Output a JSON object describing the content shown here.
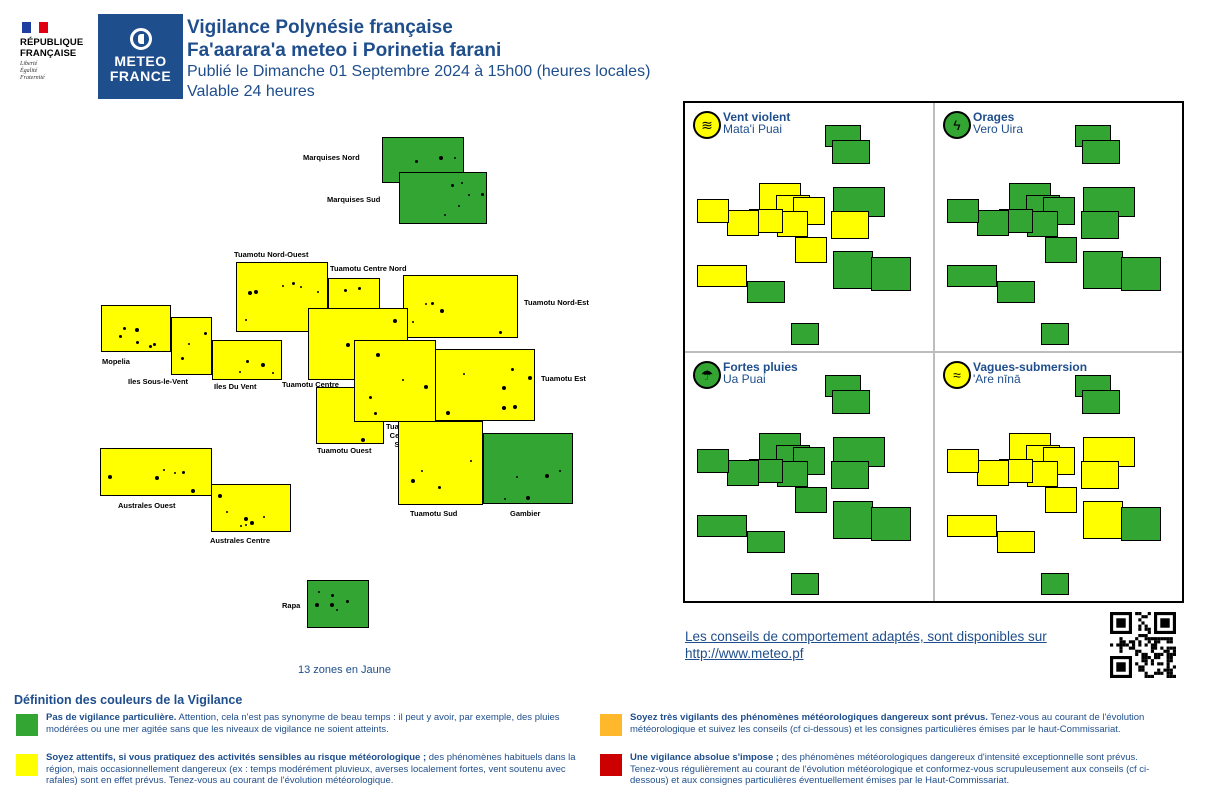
{
  "header": {
    "republic_lines": [
      "RÉPUBLIQUE",
      "FRANÇAISE"
    ],
    "republic_motto": [
      "Liberté",
      "Égalité",
      "Fraternité"
    ],
    "meteo_logo_lines": [
      "METEO",
      "FRANCE"
    ],
    "title_fr": "Vigilance Polynésie française",
    "title_tah": "Fa'aarara'a meteo i Porinetia farani",
    "published": "Publié le Dimanche 01 Septembre 2024 à 15h00 (heures locales)",
    "validity": "Valable 24 heures"
  },
  "colors": {
    "green": "#33a532",
    "yellow": "#ffff00",
    "orange": "#ffb82b",
    "red": "#cc0000",
    "brand_blue": "#1f4e8c"
  },
  "map": {
    "zones": [
      {
        "name": "Marquises Nord",
        "color": "green"
      },
      {
        "name": "Marquises Sud",
        "color": "green"
      },
      {
        "name": "Tuamotu Nord-Ouest",
        "color": "yellow"
      },
      {
        "name": "Tuamotu Centre Nord",
        "color": "yellow"
      },
      {
        "name": "Tuamotu Nord-Est",
        "color": "yellow"
      },
      {
        "name": "Mopelia",
        "color": "yellow"
      },
      {
        "name": "Iles Sous-le-Vent",
        "color": "yellow"
      },
      {
        "name": "Iles Du Vent",
        "color": "yellow"
      },
      {
        "name": "Tuamotu Centre",
        "color": "yellow"
      },
      {
        "name": "Tuamotu Est",
        "color": "yellow"
      },
      {
        "name": "Tuamotu Ouest",
        "color": "yellow"
      },
      {
        "name": "Tuamotu Centre Sud",
        "color": "yellow"
      },
      {
        "name": "Australes Ouest",
        "color": "yellow"
      },
      {
        "name": "Australes Centre",
        "color": "yellow"
      },
      {
        "name": "Tuamotu Sud",
        "color": "yellow"
      },
      {
        "name": "Gambier",
        "color": "green"
      },
      {
        "name": "Rapa",
        "color": "green"
      }
    ],
    "summary": "13 zones en Jaune"
  },
  "panels": [
    {
      "title": "Vent violent",
      "subtitle": "Mata'i Puai",
      "icon": "wind-icon"
    },
    {
      "title": "Orages",
      "subtitle": "Vero Uira",
      "icon": "lightning-icon"
    },
    {
      "title": "Fortes pluies",
      "subtitle": "Ua Puai",
      "icon": "rain-icon"
    },
    {
      "title": "Vagues-submersion",
      "subtitle": "'Are nīnā",
      "icon": "waves-icon"
    }
  ],
  "advice": {
    "text": "Les conseils de comportement adaptés, sont disponibles sur",
    "url": "http://www.meteo.pf"
  },
  "legend": {
    "title": "Définition des couleurs de la Vigilance",
    "items": [
      {
        "color": "green",
        "bold": "Pas de vigilance particulière.",
        "text": " Attention, cela n'est pas synonyme de beau temps : il peut y avoir, par exemple, des pluies modérées ou une mer agitée sans que les niveaux de vigilance ne soient atteints."
      },
      {
        "color": "yellow",
        "bold": "Soyez attentifs, si vous pratiquez des activités sensibles au risque météorologique ;",
        "text": " des phénomènes habituels dans la région, mais occasionnellement dangereux (ex : temps modérément pluvieux, averses localement fortes, vent soutenu avec rafales) sont en effet prévus. Tenez-vous au courant de l'évolution météorologique."
      },
      {
        "color": "orange",
        "bold": "Soyez très vigilants des phénomènes météorologiques dangereux sont prévus.",
        "text": " Tenez-vous au courant de l'évolution météorologique et suivez les conseils (cf ci-dessous) et les consignes particulières émises par le haut-Commissariat."
      },
      {
        "color": "red",
        "bold": "Une vigilance absolue s'impose ;",
        "text": " des phénomènes météorologiques dangereux d'intensité exceptionnelle sont prévus. Tenez-vous régulièrement au courant de l'évolution météorologique et conformez-vous scrupuleusement aux conseils (cf ci-dessous) et aux consignes particulières éventuellement émises par le Haut-Commissariat."
      }
    ]
  }
}
